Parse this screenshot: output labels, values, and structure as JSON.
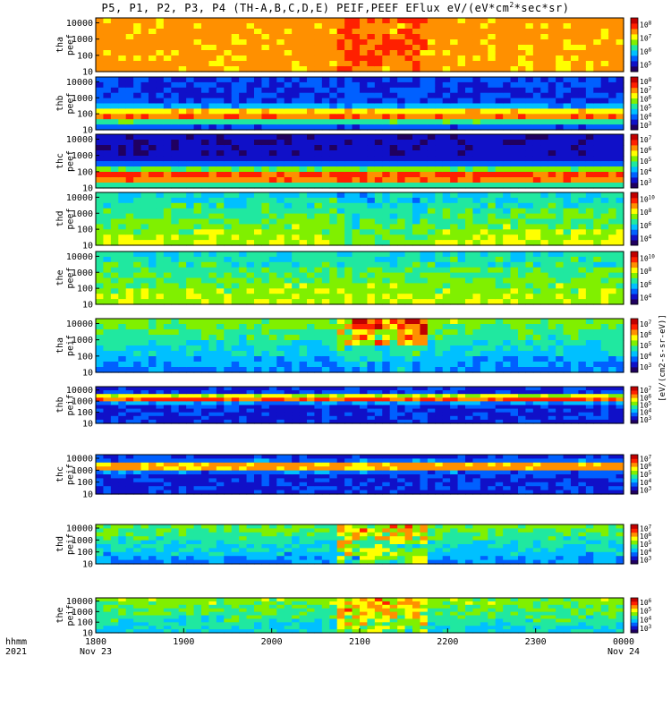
{
  "chart_data": {
    "type": "heatmap",
    "title": "P5, P1, P2, P3, P4 (TH-A,B,C,D,E) PEIF,PEEF EFlux eV/(eV*cm^2*sec*sr)",
    "title_parts": {
      "main": "P5, P1, P2, P3, P4 (TH-A,B,C,D,E) PEIF,PEEF EFlux eV/(eV*cm",
      "sup": "2",
      "tail": "*sec*sr)"
    },
    "colormap": [
      "#200060",
      "#1010c8",
      "#0060ff",
      "#00c0ff",
      "#20e8a0",
      "#80f000",
      "#ffff00",
      "#ff9000",
      "#ff2000",
      "#c00000"
    ],
    "x_axis": {
      "ticks": [
        "1800",
        "1900",
        "2000",
        "2100",
        "2200",
        "2300",
        "0000"
      ],
      "tick_values_hours": [
        18,
        19,
        20,
        21,
        22,
        23,
        24
      ],
      "date_labels": [
        "Nov 23",
        "Nov 24"
      ],
      "corner_labels": [
        "hhmm",
        "2021"
      ],
      "range_hours": [
        18,
        24
      ]
    },
    "y_ticks": [
      "10",
      "100",
      "1000",
      "10000"
    ],
    "colorbar_label": "[eV/(cm2-s-sr-eV)]",
    "panels": [
      {
        "probe": "tha",
        "product": "peef",
        "scale": "log",
        "ylim": [
          10,
          20000
        ],
        "cbar_ticks": [
          "10^5",
          "10^6",
          "10^7",
          "10^8"
        ]
      },
      {
        "probe": "thb",
        "product": "peef",
        "scale": "log",
        "ylim": [
          10,
          20000
        ],
        "cbar_ticks": [
          "10^3",
          "10^4",
          "10^5",
          "10^6",
          "10^7",
          "10^8"
        ]
      },
      {
        "probe": "thc",
        "product": "peef",
        "scale": "log",
        "ylim": [
          10,
          20000
        ],
        "cbar_ticks": [
          "10^3",
          "10^4",
          "10^5",
          "10^6",
          "10^7"
        ]
      },
      {
        "probe": "thd",
        "product": "peef",
        "scale": "log",
        "ylim": [
          10,
          20000
        ],
        "cbar_ticks": [
          "10^4",
          "10^6",
          "10^8",
          "10^10"
        ]
      },
      {
        "probe": "the",
        "product": "peef",
        "scale": "log",
        "ylim": [
          10,
          20000
        ],
        "cbar_ticks": [
          "10^4",
          "10^6",
          "10^8",
          "10^10"
        ]
      },
      {
        "probe": "tha",
        "product": "peif",
        "scale": "log",
        "ylim": [
          10,
          20000
        ],
        "cbar_ticks": [
          "10^3",
          "10^4",
          "10^5",
          "10^6",
          "10^7"
        ]
      },
      {
        "probe": "thb",
        "product": "peif",
        "scale": "log",
        "ylim": [
          10,
          20000
        ],
        "cbar_ticks": [
          "10^3",
          "10^4",
          "10^5",
          "10^6",
          "10^7"
        ]
      },
      {
        "probe": "thc",
        "product": "peif",
        "scale": "log",
        "ylim": [
          10,
          20000
        ],
        "cbar_ticks": [
          "10^3",
          "10^4",
          "10^5",
          "10^6",
          "10^7"
        ]
      },
      {
        "probe": "thd",
        "product": "peif",
        "scale": "log",
        "ylim": [
          10,
          20000
        ],
        "cbar_ticks": [
          "10^3",
          "10^4",
          "10^5",
          "10^6",
          "10^7"
        ]
      },
      {
        "probe": "the",
        "product": "peif",
        "scale": "log",
        "ylim": [
          10,
          20000
        ],
        "cbar_ticks": [
          "10^3",
          "10^4",
          "10^5",
          "10^6"
        ]
      }
    ]
  }
}
